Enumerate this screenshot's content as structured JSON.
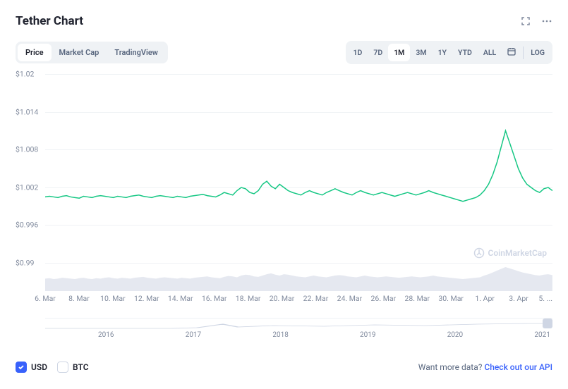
{
  "title": "Tether Chart",
  "tabs": [
    "Price",
    "Market Cap",
    "TradingView"
  ],
  "active_tab_index": 0,
  "ranges": [
    "1D",
    "7D",
    "1M",
    "3M",
    "1Y",
    "YTD",
    "ALL"
  ],
  "active_range_index": 2,
  "log_label": "LOG",
  "watermark": "CoinMarketCap",
  "chart": {
    "type": "line",
    "ylim": [
      0.99,
      1.02
    ],
    "y_ticks": [
      1.02,
      1.014,
      1.008,
      1.002,
      0.996,
      0.99
    ],
    "y_labels": [
      "$1.02",
      "$1.014",
      "$1.008",
      "$1.002",
      "$0.996",
      "$0.99"
    ],
    "x_labels": [
      "6. Mar",
      "8. Mar",
      "10. Mar",
      "12. Mar",
      "14. Mar",
      "16. Mar",
      "18. Mar",
      "20. Mar",
      "22. Mar",
      "24. Mar",
      "26. Mar",
      "28. Mar",
      "30. Mar",
      "1. Apr",
      "3. Apr",
      "5. ..."
    ],
    "line_color": "#16c784",
    "line_width": 1.5,
    "grid_color": "#eff2f5",
    "background_color": "#ffffff",
    "label_color": "#808a9d",
    "label_fontsize": 10.5,
    "volume_fill": "#cfd6e4",
    "series": [
      1.0005,
      1.0006,
      1.0005,
      1.0004,
      1.0006,
      1.0007,
      1.0005,
      1.0004,
      1.0003,
      1.0006,
      1.0005,
      1.0004,
      1.0006,
      1.0007,
      1.0006,
      1.0005,
      1.0004,
      1.0006,
      1.0005,
      1.0004,
      1.0006,
      1.0007,
      1.0008,
      1.0006,
      1.0005,
      1.0004,
      1.0006,
      1.0007,
      1.0006,
      1.0005,
      1.0004,
      1.0006,
      1.0005,
      1.0004,
      1.0006,
      1.0007,
      1.0008,
      1.0009,
      1.0007,
      1.0006,
      1.0005,
      1.0008,
      1.0012,
      1.001,
      1.0008,
      1.0015,
      1.002,
      1.0018,
      1.0012,
      1.001,
      1.0015,
      1.0025,
      1.003,
      1.0022,
      1.0018,
      1.0025,
      1.002,
      1.0015,
      1.0012,
      1.001,
      1.0008,
      1.0012,
      1.0015,
      1.0012,
      1.001,
      1.0008,
      1.0012,
      1.0015,
      1.0018,
      1.0015,
      1.0012,
      1.001,
      1.0008,
      1.0012,
      1.0015,
      1.0012,
      1.001,
      1.0008,
      1.001,
      1.0012,
      1.001,
      1.0008,
      1.0006,
      1.0008,
      1.001,
      1.0012,
      1.001,
      1.0008,
      1.001,
      1.0012,
      1.0015,
      1.0012,
      1.001,
      1.0008,
      1.0006,
      1.0004,
      1.0002,
      1.0,
      0.9998,
      1.0,
      1.0002,
      1.0004,
      1.0008,
      1.0015,
      1.0025,
      1.004,
      1.006,
      1.0085,
      1.011,
      1.009,
      1.007,
      1.005,
      1.0035,
      1.0025,
      1.002,
      1.0015,
      1.0012,
      1.0018,
      1.002,
      1.0015
    ],
    "volume": [
      28,
      29,
      27,
      28,
      30,
      29,
      28,
      27,
      29,
      30,
      28,
      27,
      29,
      28,
      30,
      31,
      29,
      28,
      30,
      29,
      28,
      30,
      31,
      32,
      30,
      29,
      28,
      30,
      31,
      30,
      29,
      28,
      30,
      29,
      28,
      30,
      31,
      32,
      33,
      31,
      30,
      29,
      32,
      34,
      33,
      31,
      35,
      37,
      36,
      33,
      32,
      35,
      38,
      40,
      37,
      35,
      38,
      37,
      35,
      33,
      32,
      31,
      33,
      35,
      33,
      32,
      31,
      33,
      35,
      36,
      35,
      33,
      32,
      31,
      33,
      35,
      33,
      32,
      31,
      32,
      33,
      32,
      31,
      30,
      31,
      32,
      33,
      32,
      31,
      32,
      33,
      35,
      33,
      32,
      31,
      30,
      29,
      28,
      27,
      28,
      29,
      30,
      31,
      35,
      38,
      42,
      46,
      50,
      54,
      51,
      48,
      45,
      42,
      40,
      38,
      36,
      35,
      37,
      38,
      36
    ]
  },
  "mini_nav_labels": [
    "2016",
    "2017",
    "2018",
    "2019",
    "2020",
    "2021"
  ],
  "currency_toggles": [
    {
      "label": "USD",
      "checked": true
    },
    {
      "label": "BTC",
      "checked": false
    }
  ],
  "footer_prompt": "Want more data?",
  "footer_link": "Check out our API"
}
